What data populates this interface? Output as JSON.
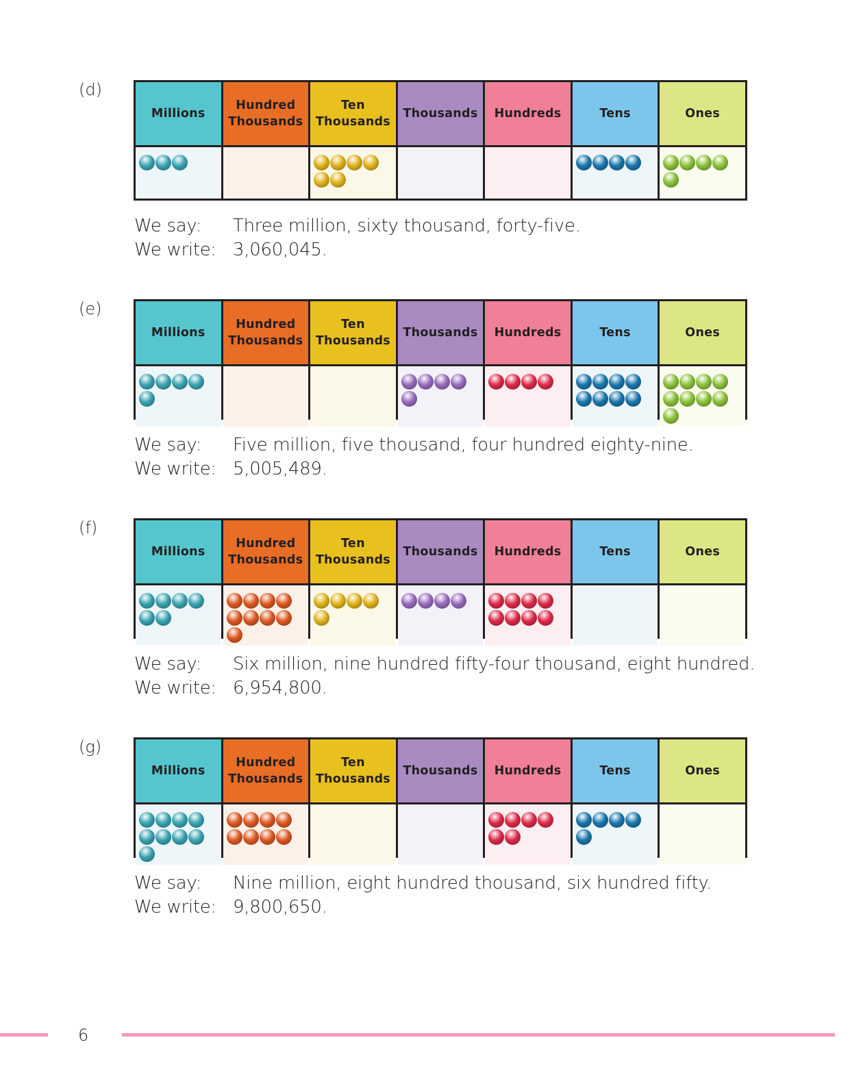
{
  "columns": [
    {
      "label": "Millions",
      "header_color": "#55c6cd",
      "cell_color": "#eef6f9",
      "bead_color": "#3aa6b4"
    },
    {
      "label": "Hundred Thousands",
      "header_color": "#e86d25",
      "cell_color": "#fbf1e8",
      "bead_color": "#e05a22"
    },
    {
      "label": "Ten Thousands",
      "header_color": "#e8c11e",
      "cell_color": "#fbf8e8",
      "bead_color": "#e2b41a"
    },
    {
      "label": "Thousands",
      "header_color": "#a98bc1",
      "cell_color": "#f4f2f9",
      "bead_color": "#9a6cc0"
    },
    {
      "label": "Hundreds",
      "header_color": "#f07f97",
      "cell_color": "#fdeef1",
      "bead_color": "#e02a4a"
    },
    {
      "label": "Tens",
      "header_color": "#7cc6ec",
      "cell_color": "#eef6fa",
      "bead_color": "#1a78ae"
    },
    {
      "label": "Ones",
      "header_color": "#dde684",
      "cell_color": "#fbfcf0",
      "bead_color": "#8cc33a"
    }
  ],
  "say_label": "We say:",
  "write_label": "We write:",
  "sections": [
    {
      "letter": "(d)",
      "counts": [
        3,
        0,
        6,
        0,
        0,
        4,
        5
      ],
      "say": "Three million, sixty thousand, forty-five.",
      "write": "3,060,045."
    },
    {
      "letter": "(e)",
      "counts": [
        5,
        0,
        0,
        5,
        4,
        8,
        9
      ],
      "say": "Five million, five thousand, four hundred eighty-nine.",
      "write": "5,005,489."
    },
    {
      "letter": "(f)",
      "counts": [
        6,
        9,
        5,
        4,
        8,
        0,
        0
      ],
      "say": "Six million, nine hundred fifty-four thousand, eight hundred.",
      "write": "6,954,800."
    },
    {
      "letter": "(g)",
      "counts": [
        9,
        8,
        0,
        0,
        6,
        5,
        0
      ],
      "say": "Nine million, eight hundred thousand, six hundred fifty.",
      "write": "9,800,650."
    }
  ],
  "page_number": "6",
  "rule_color": "#f498bf"
}
